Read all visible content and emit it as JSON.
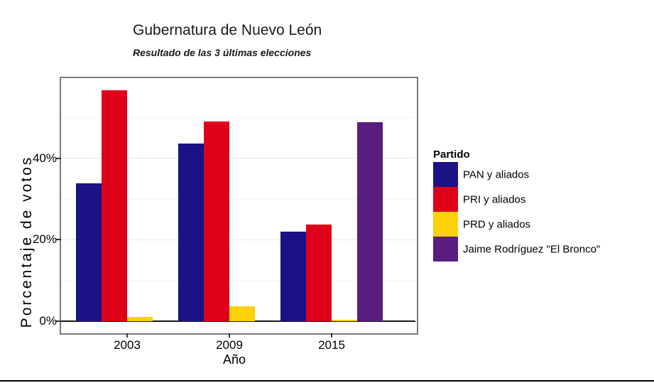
{
  "chart_data": {
    "type": "bar",
    "title": "Gubernatura de Nuevo León",
    "subtitle": "Resultado de las 3 últimas elecciones",
    "xlabel": "Año",
    "ylabel": "Porcentaje de votos",
    "categories": [
      "2003",
      "2009",
      "2015"
    ],
    "series": [
      {
        "name": "PAN y aliados",
        "color": "#1A1285",
        "values": [
          33.9,
          43.6,
          22.0
        ]
      },
      {
        "name": "PRI y aliados",
        "color": "#DE0119",
        "values": [
          56.8,
          49.0,
          23.8
        ]
      },
      {
        "name": "PRD y aliados",
        "color": "#FBD20A",
        "values": [
          1.1,
          3.6,
          0.4
        ]
      },
      {
        "name": "Jaime Rodríguez \"El Bronco\"",
        "color": "#581D7F",
        "values": [
          0,
          0,
          48.9
        ]
      }
    ],
    "ylim": [
      -2.6,
      59.7
    ],
    "yticks": [
      {
        "value": 0,
        "label": "0%"
      },
      {
        "value": 20,
        "label": "20%"
      },
      {
        "value": 40,
        "label": "40%"
      }
    ],
    "minor_gridlines": [
      10,
      30,
      50
    ],
    "grid": true,
    "legend_title": "Partido",
    "legend_position": "right",
    "zero_line": true
  },
  "colors": {
    "panel_border": "#7A7A7A",
    "grid_major": "#E6E6E6",
    "grid_minor": "#F3F3F3",
    "zero_line": "#1A1A1A",
    "text": "#000000",
    "bottom_rule": "#000000"
  }
}
